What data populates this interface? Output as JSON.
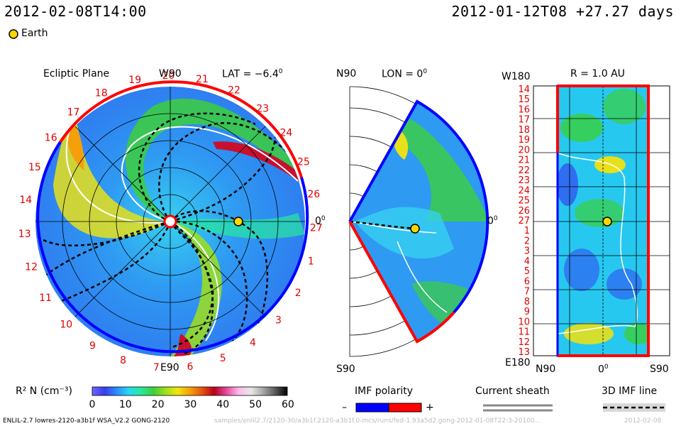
{
  "header": {
    "sim_time": "2012-02-08T14:00",
    "ref_time": "2012-01-12T08 +27.27 days",
    "earth_legend": "Earth"
  },
  "ecliptic": {
    "title": "Ecliptic Plane",
    "top_label": "W90",
    "bottom_label": "E90",
    "right_label": "0",
    "lat_label": "LAT = −6.4",
    "deg": "0",
    "carrington_labels": [
      "19",
      "20",
      "21",
      "22",
      "23",
      "24",
      "25",
      "26",
      "27",
      "1",
      "2",
      "3",
      "4",
      "5",
      "6",
      "7",
      "8",
      "9",
      "10",
      "11",
      "12",
      "13",
      "14",
      "15",
      "16",
      "17",
      "18"
    ]
  },
  "meridional": {
    "top_label": "N90",
    "bottom_label": "S90",
    "right_label": "0",
    "lon_label": "LON = 0",
    "deg": "0"
  },
  "sphere": {
    "title": "R = 1.0 AU",
    "top_left": "W180",
    "bottom_left": "E180",
    "x_labels": [
      "N90",
      "0",
      "S90"
    ],
    "deg": "0",
    "y_labels": [
      "14",
      "15",
      "16",
      "17",
      "18",
      "19",
      "20",
      "21",
      "22",
      "23",
      "24",
      "25",
      "26",
      "27",
      "1",
      "2",
      "3",
      "4",
      "5",
      "6",
      "7",
      "8",
      "9",
      "10",
      "11",
      "12",
      "13"
    ]
  },
  "colorbar": {
    "label": "R² N (cm⁻³)",
    "ticks": [
      "0",
      "10",
      "20",
      "30",
      "40",
      "50",
      "60"
    ],
    "min": 0,
    "max": 60,
    "colors": [
      "#6a6aff",
      "#3b3bf0",
      "#2a8cff",
      "#27d8f0",
      "#28e8a0",
      "#3ccf3c",
      "#9ee01c",
      "#f1e60d",
      "#f5a00a",
      "#e8540a",
      "#b8001a",
      "#e44aa0",
      "#ffb8ec",
      "#e8e8e8",
      "#a8a8a8",
      "#5a5a5a",
      "#000000"
    ]
  },
  "legends": {
    "imf_title": "IMF polarity",
    "imf_minus": "–",
    "imf_plus": "+",
    "imf_neg_color": "#0000ff",
    "imf_pos_color": "#ff0000",
    "sheath_title": "Current sheath",
    "imf3d_title": "3D IMF line"
  },
  "footer": {
    "model": "ENLIL-2.7 lowres-2120-a3b1f WSA_V2.2 GONG-2120",
    "path": "samples/enlil2.7/2120-30/a3b1f.2120-a3b1f.0-mcs/runs/fed-1.93a5d2.gong-2012-01-08T22:3-20100...",
    "stamp": "2012-02-08"
  },
  "colors": {
    "earth": "#ffd700",
    "boundary_pos": "#ff0000",
    "boundary_neg": "#0000ff"
  }
}
